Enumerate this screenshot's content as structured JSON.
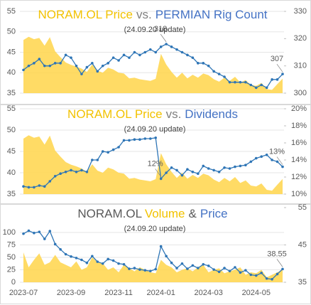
{
  "chart_data": [
    {
      "type": "area-line",
      "title_parts": [
        {
          "text": "NORAM.OL Price",
          "color": "#f2c200"
        },
        {
          "text": "vs.",
          "color": "#7f7f7f"
        },
        {
          "text": "PERMIAN Rig Count",
          "color": "#4472c4"
        }
      ],
      "subtitle": "(24.09.20 update)",
      "ylim": [
        35,
        55
      ],
      "yticks": [
        35,
        40,
        45,
        50,
        55
      ],
      "y2lim": [
        300,
        330
      ],
      "y2ticks": [
        300,
        310,
        320,
        330
      ],
      "grid": true,
      "series": [
        {
          "kind": "area",
          "axis": "y",
          "color": "#ffd54a",
          "values": [
            48.0,
            48.8,
            48.2,
            48.5,
            46.6,
            48.7,
            45.2,
            43.8,
            42.5,
            41.9,
            41.5,
            41.0,
            40.2,
            42.0,
            40.5,
            40.0,
            41.2,
            40.8,
            40.0,
            39.8,
            38.6,
            38.8,
            38.4,
            38.2,
            38.0,
            38.5,
            44.6,
            42.0,
            40.2,
            38.8,
            40.0,
            38.6,
            39.5,
            38.8,
            39.8,
            39.4,
            38.4,
            37.8,
            38.8,
            38.0,
            39.0,
            37.6,
            38.2,
            37.0,
            36.8,
            37.5,
            36.0,
            35.8,
            37.2,
            38.55
          ]
        },
        {
          "kind": "line",
          "axis": "y2",
          "color": "#2e75b6",
          "labeled_points": [
            27,
            49
          ],
          "values": [
            308.5,
            310,
            311,
            312.5,
            310,
            310,
            311,
            311,
            314,
            313,
            310,
            307,
            309.5,
            311,
            308,
            310,
            311,
            313,
            312,
            314,
            313,
            315,
            314,
            315,
            316,
            315,
            317,
            318,
            317,
            316,
            315,
            314,
            313,
            311,
            311,
            310,
            308,
            307,
            306,
            304,
            304,
            304,
            304,
            303,
            302,
            303,
            302,
            305,
            305,
            307
          ]
        }
      ]
    },
    {
      "type": "area-line",
      "title_parts": [
        {
          "text": "NORAM.OL Price",
          "color": "#f2c200"
        },
        {
          "text": "vs.",
          "color": "#7f7f7f"
        },
        {
          "text": "Dividends",
          "color": "#4472c4"
        }
      ],
      "subtitle": "(24.09.20 update)",
      "ylim": [
        35,
        55
      ],
      "yticks": [
        35,
        40,
        45,
        50,
        55
      ],
      "y2lim": [
        10,
        20
      ],
      "y2ticks": [
        {
          "value": 10,
          "label": "10%"
        },
        {
          "value": 12,
          "label": "12%"
        },
        {
          "value": 14,
          "label": "14%"
        },
        {
          "value": 16,
          "label": "16%"
        },
        {
          "value": 18,
          "label": "18%"
        },
        {
          "value": 20,
          "label": "20%"
        }
      ],
      "grid": true,
      "series": [
        {
          "kind": "area",
          "axis": "y",
          "color": "#ffd54a",
          "values": [
            48.0,
            48.8,
            48.2,
            48.5,
            46.6,
            48.7,
            45.2,
            43.8,
            42.5,
            41.9,
            41.5,
            41.0,
            40.2,
            42.0,
            40.5,
            40.0,
            41.2,
            40.8,
            40.0,
            39.8,
            38.6,
            38.8,
            38.4,
            38.2,
            38.0,
            38.5,
            44.6,
            42.0,
            40.2,
            38.8,
            40.0,
            38.6,
            39.5,
            38.8,
            39.8,
            39.4,
            38.4,
            37.8,
            38.8,
            38.0,
            39.0,
            37.6,
            38.2,
            37.0,
            36.8,
            37.5,
            36.0,
            35.8,
            37.2,
            38.55
          ]
        },
        {
          "kind": "line",
          "axis": "y2",
          "color": "#2e75b6",
          "values": [
            10.9,
            10.8,
            10.8,
            11.0,
            10.9,
            11.5,
            12.1,
            12.4,
            12.6,
            12.8,
            12.6,
            12.8,
            12.6,
            14.0,
            14.0,
            15.0,
            14.9,
            15.2,
            15.5,
            16.3,
            16.3,
            16.4,
            16.4,
            16.5,
            16.5,
            16.6,
            11.8,
            12.5,
            13.1,
            12.8,
            12.2,
            12.9,
            12.6,
            12.4,
            13.3,
            13.0,
            12.8,
            12.6,
            13.1,
            13.0,
            13.2,
            13.3,
            13.4,
            13.8,
            14.2,
            14.4,
            14.6,
            14.0,
            13.8,
            13.2
          ],
          "value_labels": [
            null,
            null,
            null,
            null,
            null,
            null,
            null,
            null,
            null,
            null,
            null,
            null,
            null,
            null,
            null,
            null,
            null,
            null,
            null,
            null,
            null,
            null,
            null,
            null,
            null,
            null,
            "12%",
            null,
            null,
            null,
            null,
            null,
            null,
            null,
            null,
            null,
            null,
            null,
            null,
            null,
            null,
            null,
            null,
            null,
            null,
            null,
            null,
            null,
            null,
            "13%"
          ]
        }
      ]
    },
    {
      "type": "area-line",
      "title_parts": [
        {
          "text": "NORAM.OL",
          "color": "#595959"
        },
        {
          "text": "Volume",
          "color": "#f2c200"
        },
        {
          "text": "&",
          "color": "#595959"
        },
        {
          "text": "Price",
          "color": "#4472c4"
        }
      ],
      "subtitle": "(24.09.20 update)",
      "categories": [
        "2023-07",
        null,
        null,
        null,
        null,
        null,
        null,
        null,
        null,
        "2023-09",
        null,
        null,
        null,
        null,
        null,
        null,
        null,
        null,
        "2023-11",
        null,
        null,
        null,
        null,
        null,
        null,
        null,
        "2024-01",
        null,
        null,
        null,
        null,
        null,
        null,
        null,
        null,
        "2024-03",
        null,
        null,
        null,
        null,
        null,
        null,
        null,
        null,
        "2024-05",
        null,
        null,
        null,
        null,
        null
      ],
      "ylim": [
        0,
        150
      ],
      "yticks": [
        0,
        25,
        50,
        75,
        100
      ],
      "y2lim": [
        35,
        55
      ],
      "y2ticks": [
        35,
        45,
        55
      ],
      "grid": true,
      "series": [
        {
          "kind": "area",
          "axis": "y",
          "color": "#ffd54a",
          "values": [
            60,
            30,
            45,
            58,
            35,
            40,
            55,
            40,
            35,
            30,
            42,
            25,
            30,
            50,
            40,
            38,
            25,
            30,
            20,
            35,
            28,
            22,
            30,
            25,
            20,
            18,
            45,
            35,
            30,
            20,
            25,
            28,
            22,
            30,
            35,
            20,
            25,
            28,
            18,
            22,
            25,
            30,
            15,
            20,
            18,
            25,
            10,
            15,
            20,
            25
          ]
        },
        {
          "kind": "line",
          "axis": "y2",
          "color": "#2e75b6",
          "labeled_points": [
            49
          ],
          "values": [
            48.0,
            48.8,
            48.2,
            48.5,
            46.6,
            48.7,
            45.2,
            43.8,
            42.5,
            41.9,
            41.5,
            41.0,
            40.2,
            42.0,
            40.5,
            40.0,
            41.2,
            40.8,
            40.0,
            39.8,
            38.6,
            38.8,
            38.4,
            38.2,
            38.0,
            38.5,
            44.6,
            42.0,
            40.2,
            38.8,
            40.0,
            38.6,
            39.5,
            38.8,
            39.8,
            39.4,
            38.4,
            37.8,
            38.8,
            38.0,
            39.0,
            37.6,
            38.2,
            37.0,
            36.8,
            37.5,
            36.0,
            35.8,
            37.2,
            38.55
          ]
        }
      ]
    }
  ]
}
